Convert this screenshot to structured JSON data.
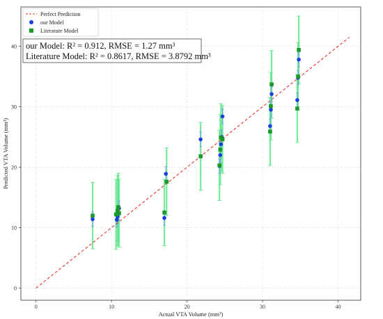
{
  "chart_data": {
    "type": "scatter",
    "title": "",
    "xlabel": "Actual VTA Volume (mm³)",
    "ylabel": "Predicted VTA Volume (mm³)",
    "xlim": [
      -2,
      43
    ],
    "ylim": [
      -2,
      46.5
    ],
    "xticks": [
      0,
      10,
      20,
      30,
      40
    ],
    "yticks": [
      0,
      10,
      20,
      30,
      40
    ],
    "grid": true,
    "legend_position": "top-left",
    "reference_line": {
      "name": "Perfect Prediction",
      "color": "#e8322a",
      "style": "dashed",
      "x": [
        0,
        41.5
      ],
      "y": [
        0,
        41.5
      ]
    },
    "annotations": [
      "our Model: R² = 0.912, RMSE = 1.27 mm³",
      "Literature Model: R² = 0.8617, RMSE = 3.8792 mm³"
    ],
    "series": [
      {
        "name": "our Model",
        "color": "#1a3ee0",
        "marker": "circle",
        "points": [
          {
            "x": 7.5,
            "y": 11.4,
            "err": 1.2
          },
          {
            "x": 10.7,
            "y": 11.3,
            "err": 1.2
          },
          {
            "x": 10.8,
            "y": 11.8,
            "err": 1.2
          },
          {
            "x": 10.9,
            "y": 12.5,
            "err": 1.2
          },
          {
            "x": 11.0,
            "y": 13.2,
            "err": 1.2
          },
          {
            "x": 17.0,
            "y": 11.6,
            "err": 1.2
          },
          {
            "x": 17.2,
            "y": 18.9,
            "err": 1.2
          },
          {
            "x": 21.8,
            "y": 24.6,
            "err": 1.2
          },
          {
            "x": 24.3,
            "y": 20.2,
            "err": 1.2
          },
          {
            "x": 24.4,
            "y": 22.0,
            "err": 1.2
          },
          {
            "x": 24.5,
            "y": 23.8,
            "err": 1.2
          },
          {
            "x": 24.6,
            "y": 25.0,
            "err": 1.2
          },
          {
            "x": 24.7,
            "y": 28.4,
            "err": 1.2
          },
          {
            "x": 31.0,
            "y": 26.8,
            "err": 1.2
          },
          {
            "x": 31.1,
            "y": 29.5,
            "err": 1.2
          },
          {
            "x": 31.2,
            "y": 32.1,
            "err": 1.2
          },
          {
            "x": 34.6,
            "y": 31.1,
            "err": 1.2
          },
          {
            "x": 34.7,
            "y": 34.8,
            "err": 1.2
          },
          {
            "x": 34.8,
            "y": 37.8,
            "err": 1.2
          }
        ]
      },
      {
        "name": "Literature Model",
        "color": "#1a9a2a",
        "error_color": "#5ee88a",
        "marker": "square",
        "points": [
          {
            "x": 7.5,
            "y": 12.0,
            "err": 5.5
          },
          {
            "x": 10.6,
            "y": 12.2,
            "err": 5.8
          },
          {
            "x": 10.8,
            "y": 12.8,
            "err": 5.8
          },
          {
            "x": 10.9,
            "y": 13.4,
            "err": 5.6
          },
          {
            "x": 11.0,
            "y": 12.4,
            "err": 5.6
          },
          {
            "x": 17.0,
            "y": 12.5,
            "err": 5.5
          },
          {
            "x": 17.3,
            "y": 17.6,
            "err": 5.6
          },
          {
            "x": 21.8,
            "y": 21.8,
            "err": 5.6
          },
          {
            "x": 24.3,
            "y": 20.3,
            "err": 5.8
          },
          {
            "x": 24.4,
            "y": 22.9,
            "err": 5.8
          },
          {
            "x": 24.5,
            "y": 24.9,
            "err": 5.6
          },
          {
            "x": 24.7,
            "y": 24.6,
            "err": 5.6
          },
          {
            "x": 31.0,
            "y": 25.9,
            "err": 5.6
          },
          {
            "x": 31.1,
            "y": 30.1,
            "err": 5.6
          },
          {
            "x": 31.2,
            "y": 33.7,
            "err": 5.6
          },
          {
            "x": 34.6,
            "y": 29.7,
            "err": 5.6
          },
          {
            "x": 34.7,
            "y": 35.0,
            "err": 5.6
          },
          {
            "x": 34.8,
            "y": 39.4,
            "err": 5.6
          }
        ]
      }
    ]
  }
}
